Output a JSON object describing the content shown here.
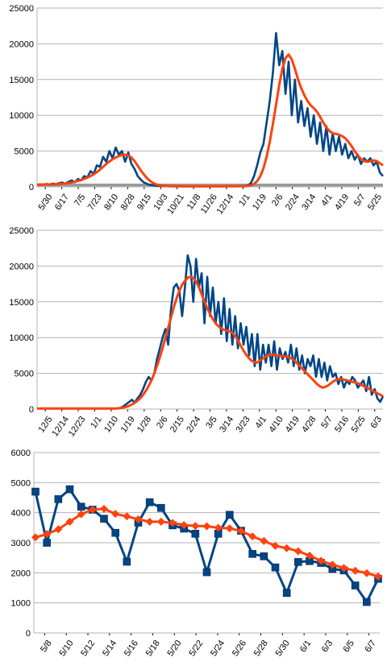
{
  "colors": {
    "daily": "#004586",
    "avg": "#ff420e",
    "grid": "#b3b3b3",
    "axis": "#000000",
    "band": "#9a9a9a"
  },
  "chart_data": [
    {
      "type": "line",
      "ylim": [
        0,
        25000
      ],
      "yticks": [
        0,
        5000,
        10000,
        15000,
        20000,
        25000
      ],
      "x_tick_labels": [
        "5/30",
        "6/17",
        "7/5",
        "7/23",
        "8/10",
        "8/28",
        "9/15",
        "10/3",
        "10/21",
        "11/8",
        "11/26",
        "12/14",
        "1/1",
        "1/19",
        "2/6",
        "2/24",
        "3/14",
        "4/1",
        "4/19",
        "5/7",
        "5/25"
      ],
      "grid": true,
      "series": [
        {
          "values": [
            300,
            350,
            300,
            400,
            320,
            450,
            380,
            500,
            600,
            450,
            700,
            900,
            650,
            1100,
            900,
            1500,
            1300,
            2200,
            1800,
            3000,
            2800,
            4200,
            3500,
            5000,
            4000,
            5500,
            4500,
            5000,
            3500,
            4800,
            3200,
            2500,
            1500,
            1000,
            600,
            400,
            250,
            200,
            150,
            120,
            100,
            100,
            90,
            80,
            80,
            80,
            70,
            70,
            70,
            70,
            70,
            70,
            70,
            70,
            70,
            70,
            70,
            70,
            70,
            80,
            80,
            80,
            80,
            80,
            90,
            90,
            100,
            200,
            500,
            1500,
            3000,
            4800,
            6000,
            9000,
            12000,
            16000,
            21500,
            17000,
            19000,
            13000,
            17500,
            10000,
            15000,
            9000,
            12000,
            8500,
            11000,
            7000,
            10000,
            6000,
            9000,
            5000,
            8500,
            4500,
            7500,
            5000,
            7000,
            4500,
            6000,
            4000,
            5000,
            3800,
            4500,
            3200,
            4000,
            3500,
            4000,
            3000,
            3500,
            2000,
            1500
          ]
        },
        {
          "values": [
            300,
            310,
            320,
            330,
            340,
            350,
            370,
            390,
            420,
            460,
            520,
            600,
            700,
            820,
            960,
            1120,
            1300,
            1500,
            1750,
            2050,
            2400,
            2800,
            3200,
            3550,
            3850,
            4100,
            4300,
            4450,
            4500,
            4400,
            4100,
            3600,
            2950,
            2300,
            1700,
            1200,
            800,
            500,
            320,
            220,
            160,
            120,
            100,
            90,
            80,
            80,
            75,
            75,
            75,
            75,
            75,
            75,
            75,
            75,
            75,
            75,
            75,
            75,
            75,
            75,
            80,
            80,
            80,
            80,
            85,
            90,
            100,
            130,
            200,
            400,
            800,
            1500,
            2600,
            4200,
            6300,
            8800,
            11500,
            14200,
            16500,
            18000,
            18500,
            17800,
            16500,
            15000,
            13800,
            12800,
            12000,
            11400,
            11000,
            10500,
            9800,
            9000,
            8300,
            7800,
            7500,
            7400,
            7300,
            7100,
            6800,
            6300,
            5700,
            5000,
            4400,
            3900,
            3600,
            3500,
            3600,
            3700,
            3600,
            3300,
            3000
          ]
        }
      ]
    },
    {
      "type": "line",
      "ylim": [
        0,
        25000
      ],
      "yticks": [
        0,
        5000,
        10000,
        15000,
        20000,
        25000
      ],
      "x_tick_labels": [
        "12/5",
        "12/14",
        "12/23",
        "1/1",
        "1/10",
        "1/19",
        "1/28",
        "2/6",
        "2/15",
        "2/24",
        "3/5",
        "3/14",
        "3/23",
        "4/1",
        "4/10",
        "4/19",
        "4/28",
        "5/7",
        "5/16",
        "5/25",
        "6/3"
      ],
      "grid": true,
      "series": [
        {
          "values": [
            80,
            80,
            80,
            80,
            80,
            80,
            80,
            80,
            80,
            80,
            80,
            80,
            80,
            80,
            80,
            80,
            80,
            80,
            80,
            80,
            80,
            80,
            80,
            80,
            80,
            80,
            80,
            80,
            80,
            100,
            200,
            400,
            700,
            1000,
            1300,
            900,
            1500,
            2000,
            2800,
            3800,
            4500,
            4000,
            5000,
            7000,
            8500,
            10000,
            11200,
            9000,
            14000,
            17000,
            17500,
            16500,
            13000,
            17000,
            21500,
            20000,
            15000,
            21000,
            17000,
            19000,
            12000,
            18500,
            13000,
            17000,
            12000,
            15000,
            10500,
            15500,
            9500,
            14000,
            9000,
            13000,
            8500,
            12000,
            9000,
            11500,
            7500,
            10500,
            6000,
            10500,
            5500,
            9000,
            6500,
            9000,
            6000,
            9500,
            5500,
            8500,
            7000,
            8000,
            6500,
            9000,
            6000,
            8500,
            5500,
            7500,
            5000,
            7000,
            6000,
            7500,
            4500,
            7000,
            4500,
            6500,
            4000,
            6000,
            4500,
            5000,
            3500,
            4500,
            3000,
            4000,
            3500,
            4500,
            4000,
            3000,
            3500,
            4000,
            2500,
            4500,
            2000,
            2800,
            1500,
            1000,
            1800
          ]
        },
        {
          "values": [
            80,
            80,
            80,
            80,
            80,
            80,
            80,
            80,
            80,
            80,
            80,
            80,
            80,
            80,
            80,
            80,
            80,
            80,
            80,
            80,
            80,
            80,
            80,
            80,
            80,
            80,
            80,
            80,
            80,
            90,
            120,
            180,
            260,
            380,
            540,
            740,
            990,
            1300,
            1700,
            2200,
            2800,
            3500,
            4300,
            5300,
            6400,
            7600,
            8900,
            10300,
            11700,
            13100,
            14500,
            15700,
            16700,
            17500,
            18000,
            18400,
            18500,
            18300,
            17800,
            17000,
            16000,
            15000,
            14100,
            13300,
            12600,
            12000,
            11600,
            11300,
            11100,
            11000,
            10900,
            10700,
            10300,
            9700,
            9000,
            8300,
            7700,
            7200,
            6800,
            6600,
            6500,
            6700,
            7000,
            7300,
            7500,
            7600,
            7600,
            7500,
            7500,
            7400,
            7400,
            7300,
            7200,
            7000,
            6700,
            6300,
            5900,
            5500,
            5100,
            4700,
            4300,
            3900,
            3500,
            3200,
            3000,
            3100,
            3300,
            3600,
            3900,
            4100,
            4200,
            4200,
            4100,
            4000,
            3900,
            3800,
            3700,
            3600,
            3400,
            3200,
            3000,
            2800,
            2600,
            2400,
            2200,
            2000,
            1800
          ]
        }
      ]
    },
    {
      "type": "line",
      "ylim": [
        0,
        6000
      ],
      "yticks": [
        0,
        1000,
        2000,
        3000,
        4000,
        5000,
        6000
      ],
      "x_tick_labels": [
        "5/8",
        "5/10",
        "5/12",
        "5/14",
        "5/16",
        "5/18",
        "5/20",
        "5/22",
        "5/24",
        "5/26",
        "5/28",
        "5/30",
        "6/1",
        "6/3",
        "6/5",
        "6/7"
      ],
      "grid": true,
      "series": [
        {
          "marker": "square",
          "values": [
            4700,
            3000,
            4450,
            4780,
            4200,
            4100,
            3800,
            3330,
            2370,
            3670,
            4350,
            4160,
            3580,
            3470,
            3300,
            2020,
            3300,
            3930,
            3400,
            2630,
            2550,
            2180,
            1330,
            2360,
            2390,
            2330,
            2130,
            2080,
            1580,
            1030,
            1800
          ]
        },
        {
          "marker": "diamond",
          "values": [
            3180,
            3290,
            3450,
            3700,
            3950,
            4100,
            4130,
            3960,
            3880,
            3780,
            3700,
            3700,
            3660,
            3590,
            3560,
            3550,
            3500,
            3480,
            3390,
            3210,
            3060,
            2900,
            2820,
            2720,
            2570,
            2400,
            2270,
            2160,
            2070,
            1990,
            1880
          ]
        }
      ]
    }
  ]
}
